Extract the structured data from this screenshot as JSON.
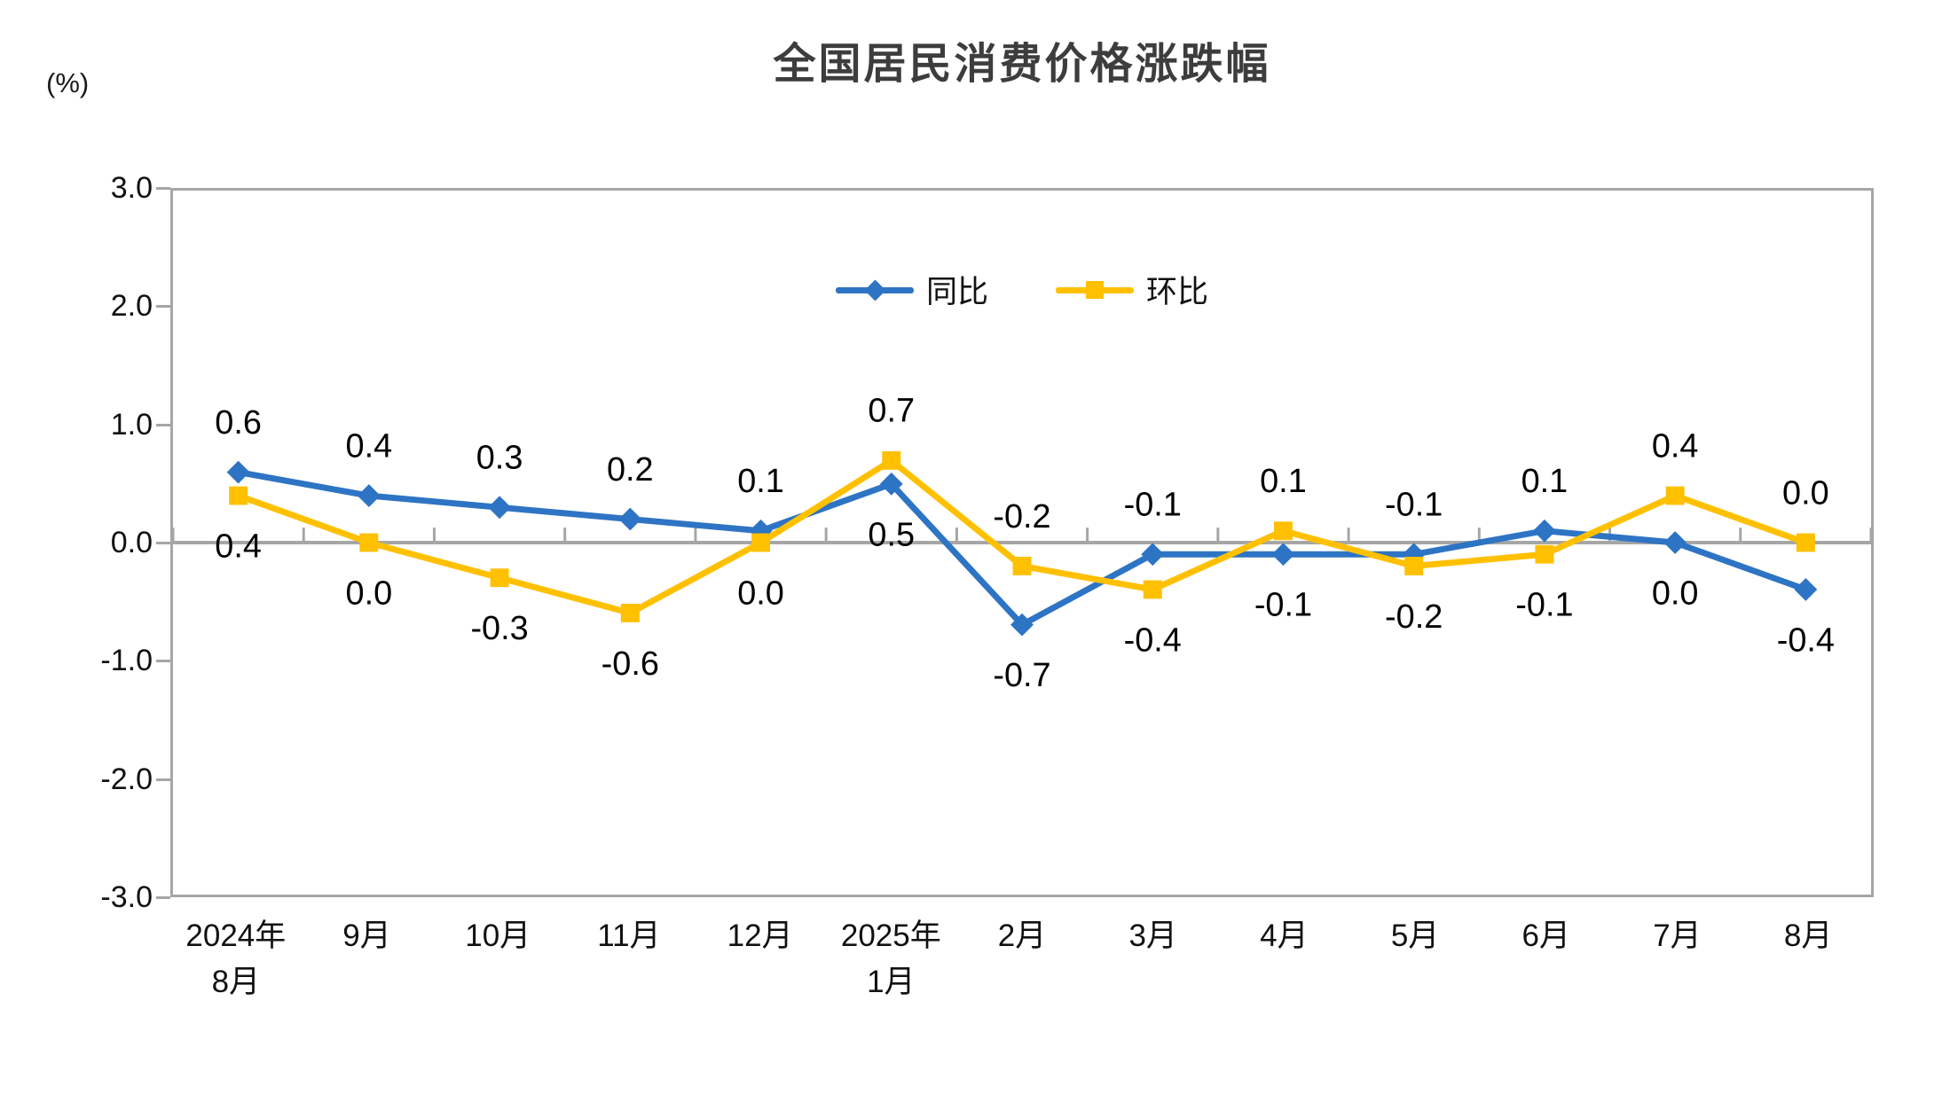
{
  "chart_data": {
    "type": "line",
    "title": "全国居民消费价格涨跌幅",
    "unit_label": "(%)",
    "categories": [
      {
        "line1": "2024年",
        "line2": "8月"
      },
      {
        "line1": "9月"
      },
      {
        "line1": "10月"
      },
      {
        "line1": "11月"
      },
      {
        "line1": "12月"
      },
      {
        "line1": "2025年",
        "line2": "1月"
      },
      {
        "line1": "2月"
      },
      {
        "line1": "3月"
      },
      {
        "line1": "4月"
      },
      {
        "line1": "5月"
      },
      {
        "line1": "6月"
      },
      {
        "line1": "7月"
      },
      {
        "line1": "8月"
      }
    ],
    "series": [
      {
        "key": "yoy",
        "name": "同比",
        "color": "#2E74C4",
        "marker": "diamond",
        "values": [
          0.6,
          0.4,
          0.3,
          0.2,
          0.1,
          0.5,
          -0.7,
          -0.1,
          -0.1,
          -0.1,
          0.1,
          0.0,
          -0.4
        ]
      },
      {
        "key": "mom",
        "name": "环比",
        "color": "#FFC000",
        "marker": "square",
        "values": [
          0.4,
          0.0,
          -0.3,
          -0.6,
          0.0,
          0.7,
          -0.2,
          -0.4,
          0.1,
          -0.2,
          -0.1,
          0.4,
          0.0
        ]
      }
    ],
    "y_axis": {
      "min": -3.0,
      "max": 3.0,
      "tick_step": 1.0,
      "tick_labels": [
        "3.0",
        "2.0",
        "1.0",
        "0.0",
        "-1.0",
        "-2.0",
        "-3.0"
      ]
    },
    "legend_position": "top-center-inside",
    "grid": false,
    "axis_color": "#A6A6A6",
    "label_color": "#000000",
    "title_color": "#3D3D3D"
  }
}
